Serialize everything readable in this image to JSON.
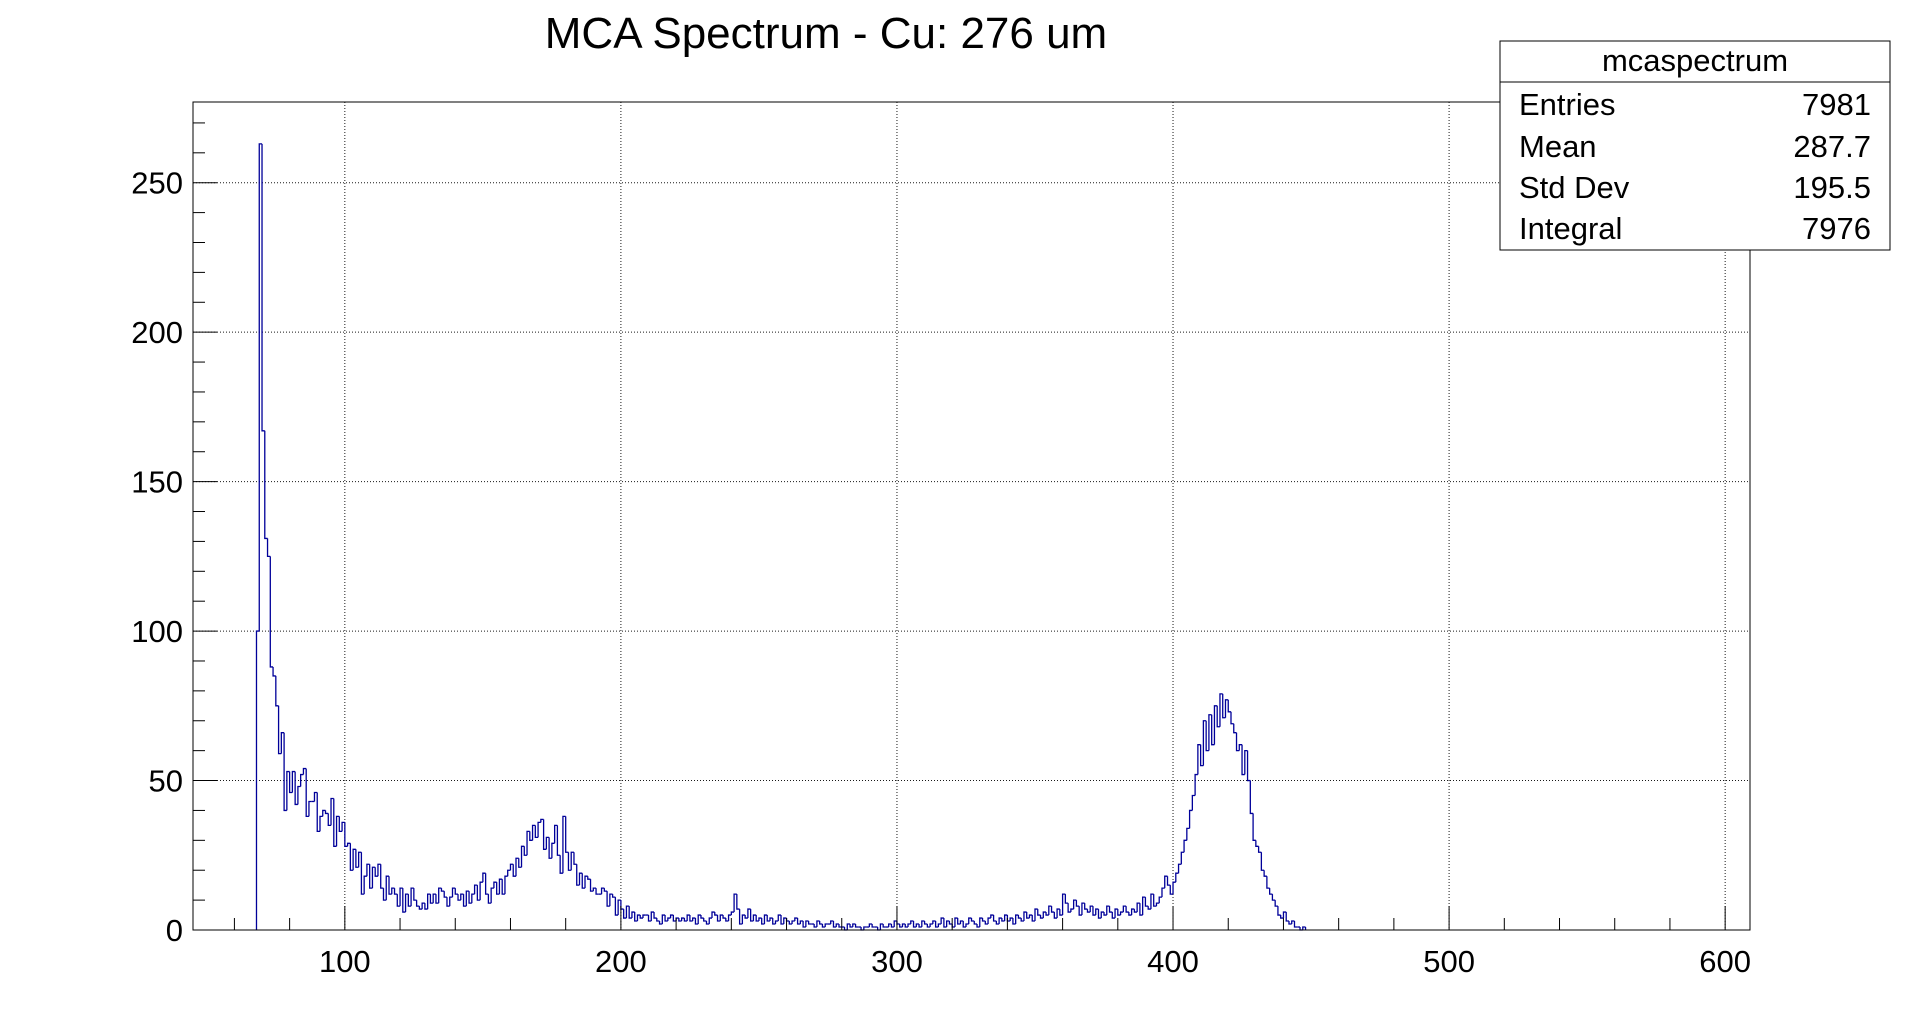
{
  "chart_data": {
    "type": "histogram",
    "title": "MCA Spectrum - Cu: 276 um",
    "xlabel": "",
    "ylabel": "",
    "xlim": [
      45,
      609
    ],
    "ylim": [
      0,
      277
    ],
    "x_ticks": [
      100,
      200,
      300,
      400,
      500,
      600
    ],
    "y_ticks": [
      0,
      50,
      100,
      150,
      200,
      250
    ],
    "grid": true,
    "line_color": "#000099",
    "bin_width": 1,
    "bin_start": 68,
    "values": [
      100,
      263,
      167,
      131,
      125,
      88,
      85,
      75,
      59,
      66,
      40,
      53,
      46,
      53,
      42,
      48,
      52,
      54,
      38,
      43,
      43,
      46,
      33,
      38,
      40,
      39,
      35,
      44,
      28,
      38,
      33,
      36,
      28,
      29,
      20,
      27,
      21,
      26,
      12,
      18,
      22,
      14,
      21,
      18,
      22,
      14,
      10,
      18,
      12,
      14,
      12,
      8,
      14,
      6,
      12,
      8,
      14,
      10,
      8,
      7,
      9,
      7,
      12,
      9,
      12,
      9,
      14,
      13,
      11,
      8,
      11,
      14,
      12,
      10,
      12,
      8,
      13,
      9,
      12,
      15,
      10,
      16,
      19,
      12,
      9,
      14,
      16,
      12,
      17,
      12,
      18,
      20,
      22,
      18,
      24,
      21,
      28,
      25,
      33,
      30,
      35,
      31,
      36,
      37,
      27,
      31,
      24,
      29,
      35,
      25,
      19,
      38,
      26,
      20,
      26,
      22,
      15,
      19,
      14,
      18,
      17,
      13,
      14,
      12,
      12,
      14,
      13,
      8,
      12,
      11,
      5,
      10,
      7,
      4,
      8,
      4,
      6,
      3,
      5,
      4,
      5,
      5,
      3,
      6,
      4,
      3,
      2,
      5,
      3,
      4,
      5,
      3,
      4,
      3,
      4,
      3,
      5,
      3,
      4,
      2,
      5,
      4,
      3,
      2,
      4,
      6,
      5,
      3,
      5,
      4,
      3,
      5,
      6,
      12,
      7,
      2,
      5,
      4,
      7,
      3,
      5,
      3,
      4,
      2,
      5,
      3,
      4,
      2,
      3,
      5,
      2,
      4,
      3,
      2,
      3,
      4,
      2,
      3,
      1,
      3,
      2,
      2,
      1,
      3,
      2,
      1,
      2,
      2,
      3,
      1,
      2,
      1,
      1,
      0,
      2,
      1,
      2,
      1,
      1,
      0,
      1,
      1,
      2,
      1,
      1,
      0,
      2,
      1,
      1,
      2,
      1,
      3,
      2,
      1,
      2,
      1,
      2,
      3,
      1,
      2,
      1,
      3,
      2,
      1,
      2,
      3,
      1,
      2,
      4,
      1,
      3,
      2,
      1,
      4,
      2,
      3,
      1,
      2,
      4,
      3,
      2,
      1,
      4,
      3,
      2,
      4,
      5,
      3,
      2,
      4,
      3,
      5,
      3,
      4,
      2,
      5,
      4,
      3,
      6,
      4,
      5,
      3,
      7,
      5,
      4,
      6,
      5,
      8,
      6,
      4,
      7,
      5,
      12,
      9,
      6,
      7,
      10,
      8,
      5,
      9,
      7,
      6,
      8,
      5,
      7,
      4,
      6,
      5,
      8,
      6,
      4,
      7,
      5,
      6,
      8,
      6,
      5,
      7,
      6,
      9,
      5,
      11,
      8,
      7,
      12,
      8,
      9,
      11,
      14,
      18,
      15,
      12,
      16,
      19,
      22,
      26,
      30,
      34,
      40,
      45,
      52,
      62,
      55,
      70,
      60,
      72,
      62,
      75,
      68,
      79,
      71,
      77,
      73,
      69,
      66,
      60,
      62,
      52,
      60,
      50,
      39,
      30,
      28,
      26,
      20,
      18,
      14,
      12,
      10,
      8,
      5,
      4,
      6,
      3,
      2,
      3,
      1,
      1,
      0,
      1
    ]
  },
  "stats_box": {
    "title": "mcaspectrum",
    "rows": [
      {
        "label": "Entries",
        "value": "7981"
      },
      {
        "label": "Mean",
        "value": "287.7"
      },
      {
        "label": "Std Dev",
        "value": "195.5"
      },
      {
        "label": "Integral",
        "value": "7976"
      }
    ]
  }
}
